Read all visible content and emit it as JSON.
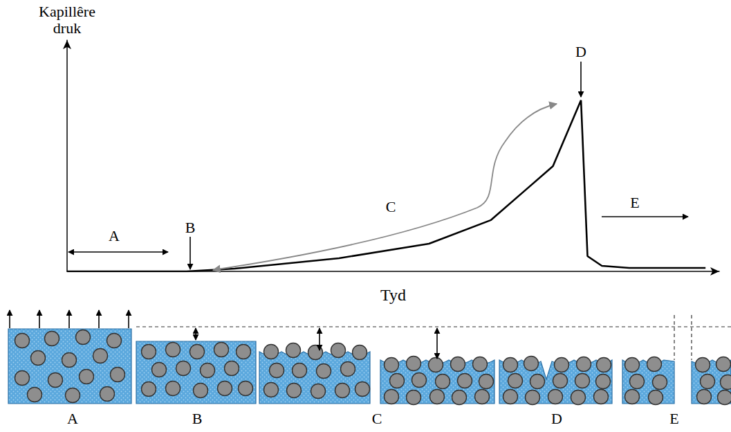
{
  "chart_data": {
    "type": "line",
    "x_label": "Tyd",
    "y_label": "Kapillêre druk",
    "x": [
      0,
      18.3,
      25.7,
      41.7,
      55.5,
      65,
      74.5,
      78.8,
      79.8,
      82,
      86.2,
      97.9
    ],
    "values": [
      0,
      0,
      1.2,
      5.7,
      12,
      22.2,
      45.5,
      74,
      6.6,
      2.4,
      1.5,
      1.5
    ],
    "xlim": [
      0,
      100
    ],
    "ylim": [
      0,
      100
    ],
    "tick_labels": false,
    "grid": false,
    "color": "#000000",
    "line_style": "solid",
    "annotations": [
      {
        "text": "A"
      },
      {
        "text": "B"
      },
      {
        "text": "C"
      },
      {
        "text": "D"
      },
      {
        "text": "E"
      }
    ]
  },
  "diagram": {
    "panels": [
      {
        "label": "A"
      },
      {
        "label": "B"
      },
      {
        "label": "C"
      },
      {
        "label": "D"
      },
      {
        "label": "E"
      }
    ]
  }
}
